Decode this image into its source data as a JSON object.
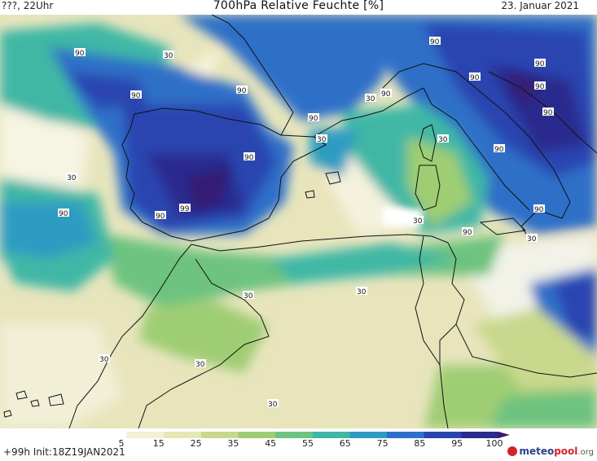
{
  "header": {
    "left": "???, 22Uhr",
    "title": "700hPa Relative Feuchte [%]",
    "date": "23. Januar 2021"
  },
  "map": {
    "field": "relative humidity 700hPa",
    "contour_labels": [
      "90",
      "30",
      "90",
      "90",
      "30",
      "90",
      "90",
      "90",
      "90",
      "90",
      "30",
      "90",
      "90",
      "30",
      "90",
      "30",
      "90",
      "90",
      "90",
      "99",
      "30",
      "90",
      "90",
      "30",
      "30",
      "30",
      "30",
      "30",
      "30",
      "30"
    ]
  },
  "colorbar": {
    "ticks": [
      "5",
      "15",
      "25",
      "35",
      "45",
      "55",
      "65",
      "75",
      "85",
      "95",
      "100"
    ],
    "colors": [
      "#ffffff",
      "#f3f0d6",
      "#e6e8b4",
      "#c9d88d",
      "#9fcd73",
      "#6dc37f",
      "#3fb7a5",
      "#2e9bc2",
      "#2e70c8",
      "#2a45b0",
      "#2b2a8e",
      "#3a1b6e"
    ]
  },
  "footer": {
    "init": "+99h  Init:18Z19JAN2021",
    "logo_a": "meteo",
    "logo_b": "pool",
    "logo_c": ".org"
  }
}
